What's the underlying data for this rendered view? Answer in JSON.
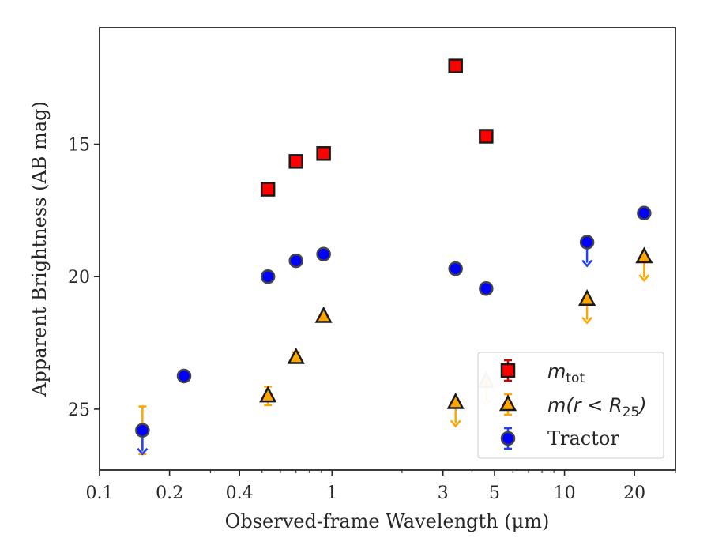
{
  "chart_data": {
    "type": "scatter",
    "xlabel": "Observed-frame Wavelength (μm)",
    "ylabel": "Apparent Brightness (AB mag)",
    "x_scale": "log",
    "y_inverted": true,
    "xlim": [
      0.1,
      30
    ],
    "ylim": [
      27.3,
      10.6
    ],
    "x_ticks": [
      0.1,
      0.2,
      0.4,
      1,
      3,
      5,
      10,
      20
    ],
    "x_tick_labels": [
      "0.1",
      "0.2",
      "0.4",
      "1",
      "3",
      "5",
      "10",
      "20"
    ],
    "y_ticks": [
      15,
      20,
      25
    ],
    "y_tick_labels": [
      "15",
      "20",
      "25"
    ],
    "grid": false,
    "legend_position": "lower-right",
    "series": [
      {
        "name": "m_tot",
        "marker": "square",
        "color": "#ff0000",
        "edge_color": "#1a1a1a",
        "errbar_color": "#cc0000",
        "points": [
          {
            "x": 0.53,
            "y": 16.7
          },
          {
            "x": 0.7,
            "y": 15.65
          },
          {
            "x": 0.92,
            "y": 15.35
          },
          {
            "x": 3.4,
            "y": 12.05
          },
          {
            "x": 4.6,
            "y": 14.7
          }
        ]
      },
      {
        "name": "m(r<R25)",
        "marker": "triangle",
        "color": "#ffa500",
        "edge_color": "#1a1a1a",
        "errbar_color": "#ffa500",
        "points": [
          {
            "x": 0.53,
            "y": 24.5,
            "err": 0.35
          },
          {
            "x": 0.7,
            "y": 23.05,
            "err": 0.2
          },
          {
            "x": 0.92,
            "y": 21.5
          },
          {
            "x": 3.4,
            "y": 24.75,
            "upper_limit": true
          },
          {
            "x": 4.6,
            "y": 23.95,
            "upper_limit": true,
            "faded": true
          },
          {
            "x": 12.5,
            "y": 20.85,
            "upper_limit": true
          },
          {
            "x": 22,
            "y": 19.25,
            "upper_limit": true
          }
        ]
      },
      {
        "name": "Tractor",
        "marker": "circle",
        "color": "#0000ff",
        "edge_color": "#444444",
        "errbar_color": "#1f3fff",
        "points": [
          {
            "x": 0.153,
            "y": 25.8,
            "err": 0.9,
            "upper_limit": true,
            "err_color": "#ffa500"
          },
          {
            "x": 0.231,
            "y": 23.75
          },
          {
            "x": 0.53,
            "y": 20.0
          },
          {
            "x": 0.7,
            "y": 19.4
          },
          {
            "x": 0.92,
            "y": 19.15
          },
          {
            "x": 3.4,
            "y": 19.7
          },
          {
            "x": 4.6,
            "y": 20.45
          },
          {
            "x": 12.5,
            "y": 18.7,
            "upper_limit": true
          },
          {
            "x": 22,
            "y": 17.6
          }
        ]
      }
    ],
    "legend": [
      {
        "label_main": "m",
        "label_sub": "tot",
        "series": "m_tot"
      },
      {
        "label_main": "m(r < R",
        "label_sub": "25",
        "label_tail": ")",
        "series": "m(r<R25)"
      },
      {
        "label_main": "Tractor",
        "series": "Tractor"
      }
    ]
  }
}
